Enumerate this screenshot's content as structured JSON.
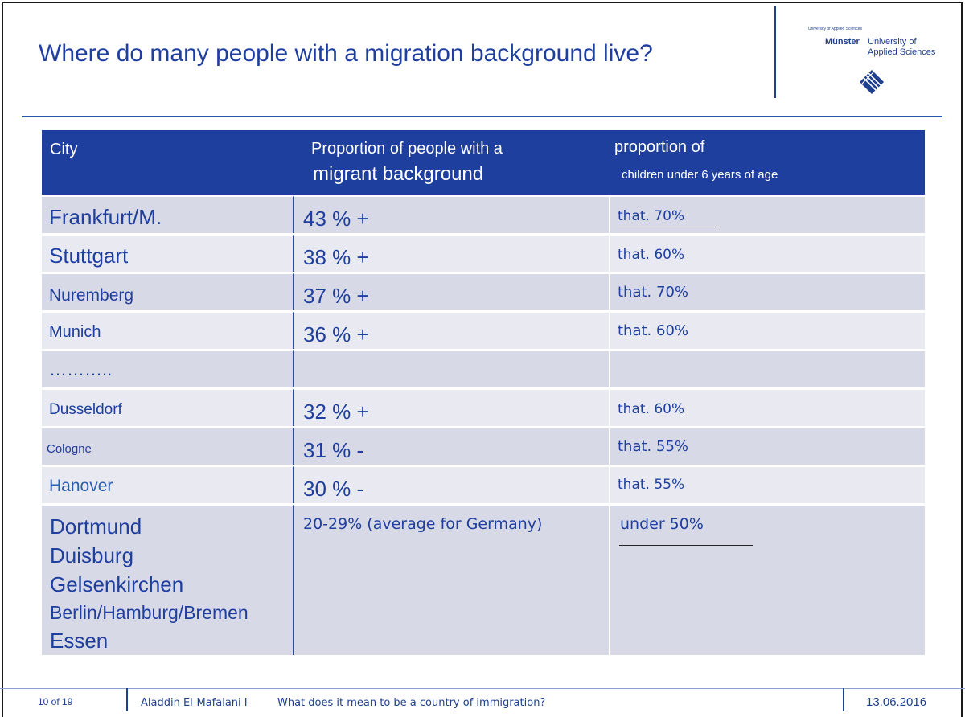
{
  "slide": {
    "title": "Where do many people with a migration background live?"
  },
  "logo": {
    "small_text": "University of Applied Sciences",
    "city": "Münster",
    "name_line1": "University of",
    "name_line2": "Applied Sciences"
  },
  "table": {
    "headers": {
      "city": "City",
      "proportion_line1": "Proportion of people with a",
      "proportion_line2": "migrant background",
      "children_line1": "proportion of",
      "children_line2": "children under 6 years of age"
    },
    "rows": [
      {
        "city": "Frankfurt/M.",
        "proportion": "43 % +",
        "children": "that. 70%"
      },
      {
        "city": "Stuttgart",
        "proportion": "38 % +",
        "children": "that. 60%"
      },
      {
        "city": "Nuremberg",
        "proportion": "37 % +",
        "children": "that. 70%"
      },
      {
        "city": "Munich",
        "proportion": "36 % +",
        "children": "that. 60%"
      },
      {
        "city": "………..",
        "proportion": "",
        "children": ""
      },
      {
        "city": "Dusseldorf",
        "proportion": "32 % +",
        "children": "that. 60%"
      },
      {
        "city": "Cologne",
        "proportion": "31 % -",
        "children": "that. 55%"
      },
      {
        "city": "Hanover",
        "proportion": "30 % -",
        "children": "that. 55%"
      }
    ],
    "last_row": {
      "cities": [
        "Dortmund",
        "Duisburg",
        "Gelsenkirchen",
        "Berlin/Hamburg/Bremen",
        "Essen"
      ],
      "proportion": "20-29% (average for Germany)",
      "children": "under 50%"
    }
  },
  "footer": {
    "page": "10 of 19",
    "author": "Aladdin El-Mafalani I",
    "topic": "What does it mean to be a country of immigration?",
    "date": "13.06.2016"
  },
  "colors": {
    "accent": "#1f3f9f",
    "row_dark": "#d7d9e6",
    "row_light": "#e9eaf1"
  }
}
